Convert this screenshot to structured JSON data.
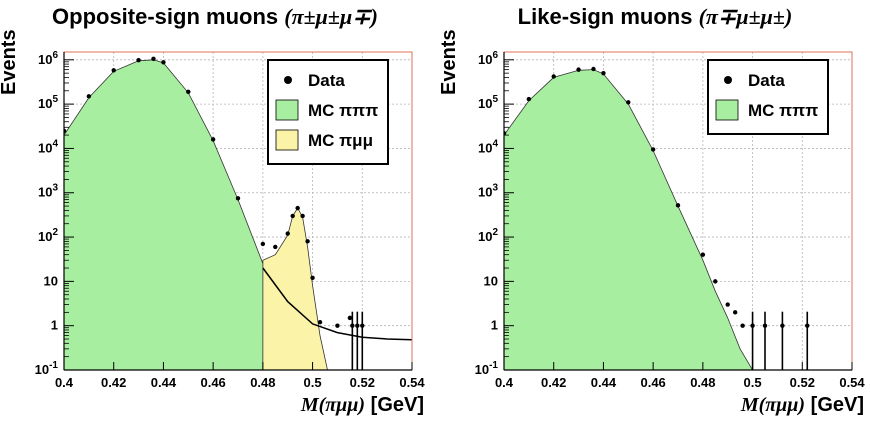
{
  "chart_data": [
    {
      "type": "histogram",
      "title": "Opposite-sign muons (π±μ±μ∓)",
      "title_text": "Opposite-sign muons",
      "title_symbol": "(π±μ±μ∓)",
      "xlabel": "M(πμμ) [GeV]",
      "xlabel_math": "M(πμμ)",
      "xlabel_unit": "[GeV]",
      "ylabel": "Events",
      "xlim": [
        0.4,
        0.54
      ],
      "ylim": [
        0.1,
        1500000
      ],
      "yscale": "log",
      "grid": true,
      "legend_position": "top-right",
      "x_ticks": [
        "0.4",
        "0.42",
        "0.44",
        "0.46",
        "0.48",
        "0.5",
        "0.52",
        "0.54"
      ],
      "y_ticks": [
        {
          "base": "10",
          "exp": "-1"
        },
        {
          "base": "1",
          "exp": ""
        },
        {
          "base": "10",
          "exp": ""
        },
        {
          "base": "10",
          "exp": "2"
        },
        {
          "base": "10",
          "exp": "3"
        },
        {
          "base": "10",
          "exp": "4"
        },
        {
          "base": "10",
          "exp": "5"
        },
        {
          "base": "10",
          "exp": "6"
        }
      ],
      "legend": [
        {
          "label": "Data",
          "marker": "point",
          "color": "#000000"
        },
        {
          "label": "MC πππ",
          "marker": "box",
          "color": "#a8eea0"
        },
        {
          "label": "MC πμμ",
          "marker": "box",
          "color": "#fbf4a8"
        }
      ],
      "colors": {
        "mc_pipipi": "#a8eea0",
        "mc_pimumu": "#fbf4a8",
        "data": "#000000",
        "grid": "#b5b5b5",
        "frame": "#e07050"
      },
      "series": [
        {
          "name": "MC πππ",
          "style": "filled",
          "x": [
            0.4,
            0.41,
            0.42,
            0.43,
            0.436,
            0.44,
            0.45,
            0.46,
            0.47,
            0.48,
            0.485,
            0.49,
            0.495,
            0.5,
            0.505
          ],
          "y": [
            20000,
            140000,
            550000,
            950000,
            1000000,
            850000,
            180000,
            15000,
            700,
            25,
            7,
            2,
            0.6,
            0.15,
            0.1
          ]
        },
        {
          "name": "MC πμμ",
          "style": "filled",
          "x": [
            0.48,
            0.485,
            0.49,
            0.492,
            0.494,
            0.496,
            0.498,
            0.5,
            0.503,
            0.506
          ],
          "y": [
            30,
            40,
            110,
            300,
            450,
            280,
            60,
            8,
            0.6,
            0.1
          ]
        },
        {
          "name": "Data",
          "style": "points",
          "x": [
            0.4,
            0.41,
            0.42,
            0.43,
            0.436,
            0.44,
            0.45,
            0.46,
            0.47,
            0.48,
            0.485,
            0.49,
            0.492,
            0.494,
            0.496,
            0.498,
            0.5,
            0.503,
            0.51,
            0.515
          ],
          "y": [
            25000,
            150000,
            580000,
            980000,
            1050000,
            880000,
            190000,
            16000,
            750,
            70,
            60,
            120,
            300,
            450,
            300,
            80,
            12,
            1.2,
            1,
            1.5
          ]
        },
        {
          "name": "Data (isolated)",
          "style": "points",
          "x": [
            0.516,
            0.518,
            0.52
          ],
          "y": [
            1,
            1,
            1
          ]
        },
        {
          "name": "Fit",
          "style": "line",
          "x": [
            0.48,
            0.49,
            0.5,
            0.51,
            0.52,
            0.53,
            0.54
          ],
          "y": [
            20,
            3.5,
            1.1,
            0.7,
            0.55,
            0.5,
            0.48
          ]
        }
      ]
    },
    {
      "type": "histogram",
      "title": "Like-sign muons (π∓μ±μ±)",
      "title_text": "Like-sign muons",
      "title_symbol": "(π∓μ±μ±)",
      "xlabel": "M(πμμ) [GeV]",
      "xlabel_math": "M(πμμ)",
      "xlabel_unit": "[GeV]",
      "ylabel": "Events",
      "xlim": [
        0.4,
        0.54
      ],
      "ylim": [
        0.1,
        1500000
      ],
      "yscale": "log",
      "grid": true,
      "legend_position": "top-right",
      "x_ticks": [
        "0.4",
        "0.42",
        "0.44",
        "0.46",
        "0.48",
        "0.5",
        "0.52",
        "0.54"
      ],
      "y_ticks": [
        {
          "base": "10",
          "exp": "-1"
        },
        {
          "base": "1",
          "exp": ""
        },
        {
          "base": "10",
          "exp": ""
        },
        {
          "base": "10",
          "exp": "2"
        },
        {
          "base": "10",
          "exp": "3"
        },
        {
          "base": "10",
          "exp": "4"
        },
        {
          "base": "10",
          "exp": "5"
        },
        {
          "base": "10",
          "exp": "6"
        }
      ],
      "legend": [
        {
          "label": "Data",
          "marker": "point",
          "color": "#000000"
        },
        {
          "label": "MC πππ",
          "marker": "box",
          "color": "#a8eea0"
        }
      ],
      "colors": {
        "mc_pipipi": "#a8eea0",
        "data": "#000000",
        "grid": "#b5b5b5",
        "frame": "#e07050"
      },
      "series": [
        {
          "name": "MC πππ",
          "style": "filled",
          "x": [
            0.4,
            0.41,
            0.42,
            0.43,
            0.436,
            0.44,
            0.45,
            0.46,
            0.47,
            0.48,
            0.485,
            0.49,
            0.495,
            0.5
          ],
          "y": [
            20000,
            120000,
            400000,
            580000,
            600000,
            480000,
            100000,
            9000,
            500,
            30,
            6,
            1.5,
            0.3,
            0.1
          ]
        },
        {
          "name": "Data",
          "style": "points",
          "x": [
            0.4,
            0.41,
            0.42,
            0.43,
            0.436,
            0.44,
            0.45,
            0.46,
            0.47,
            0.48,
            0.485,
            0.49,
            0.493,
            0.496
          ],
          "y": [
            22000,
            130000,
            420000,
            600000,
            620000,
            500000,
            110000,
            9500,
            520,
            40,
            10,
            3,
            2,
            1
          ]
        },
        {
          "name": "Data (isolated)",
          "style": "points",
          "x": [
            0.5,
            0.505,
            0.512,
            0.522
          ],
          "y": [
            1,
            1,
            1,
            1
          ]
        }
      ]
    }
  ]
}
